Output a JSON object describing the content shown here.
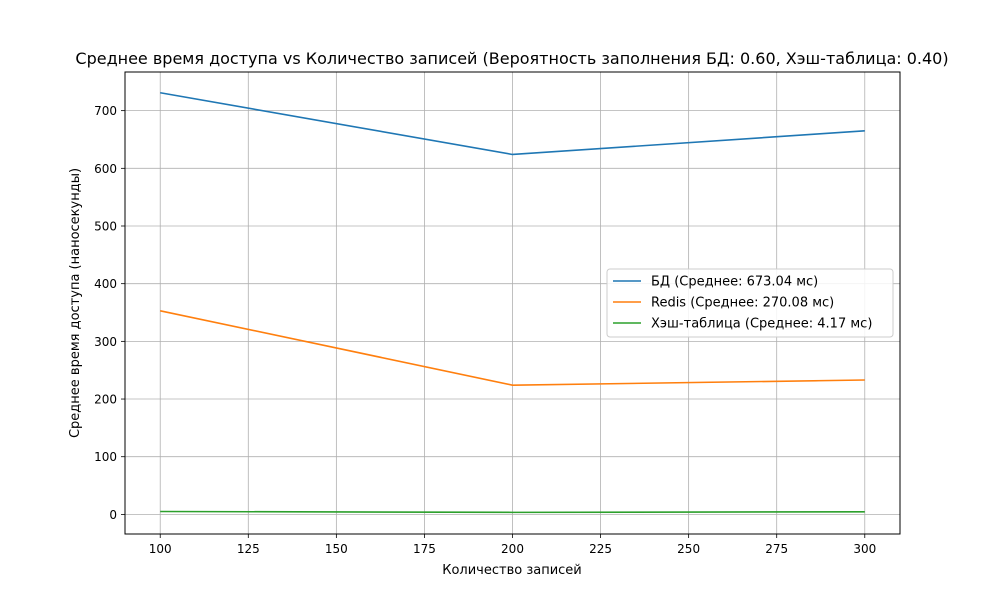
{
  "chart_data": {
    "type": "line",
    "title": "Среднее время доступа vs Количество записей (Вероятность заполнения БД: 0.60, Хэш-таблица: 0.40)",
    "xlabel": "Количество записей",
    "ylabel": "Среднее время доступа (наносекунды)",
    "x": [
      100,
      200,
      300
    ],
    "xlim": [
      90,
      310
    ],
    "ylim": [
      -34,
      767
    ],
    "x_ticks": [
      100,
      125,
      150,
      175,
      200,
      225,
      250,
      275,
      300
    ],
    "y_ticks": [
      0,
      100,
      200,
      300,
      400,
      500,
      600,
      700
    ],
    "grid": true,
    "legend_position": "center-right",
    "series": [
      {
        "name": "БД (Среднее: 673.04 мс)",
        "color": "#1f77b4",
        "values": [
          731,
          624,
          665
        ]
      },
      {
        "name": "Redis (Среднее: 270.08 мс)",
        "color": "#ff7f0e",
        "values": [
          353,
          224,
          233
        ]
      },
      {
        "name": "Хэш-таблица (Среднее: 4.17 мс)",
        "color": "#2ca02c",
        "values": [
          5,
          3.5,
          4.5
        ]
      }
    ]
  }
}
